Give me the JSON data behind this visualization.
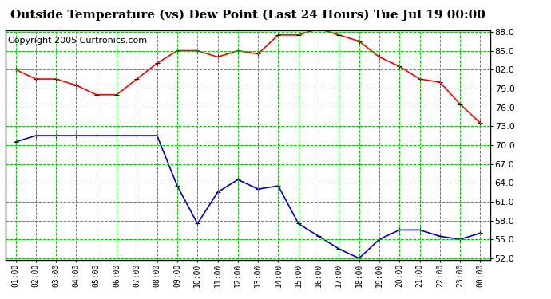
{
  "title": "Outside Temperature (vs) Dew Point (Last 24 Hours) Tue Jul 19 00:00",
  "copyright": "Copyright 2005 Curtronics.com",
  "x_labels": [
    "01:00",
    "02:00",
    "03:00",
    "04:00",
    "05:00",
    "06:00",
    "07:00",
    "08:00",
    "09:00",
    "10:00",
    "11:00",
    "12:00",
    "13:00",
    "14:00",
    "15:00",
    "16:00",
    "17:00",
    "18:00",
    "19:00",
    "20:00",
    "21:00",
    "22:00",
    "23:00",
    "00:00"
  ],
  "temp_values": [
    82.0,
    80.5,
    80.5,
    79.5,
    78.0,
    78.0,
    80.5,
    83.0,
    85.0,
    85.0,
    84.0,
    85.0,
    84.5,
    87.5,
    87.5,
    88.5,
    87.5,
    86.5,
    84.0,
    82.5,
    80.5,
    80.0,
    76.5,
    73.5
  ],
  "dew_values": [
    70.5,
    71.5,
    71.5,
    71.5,
    71.5,
    71.5,
    71.5,
    71.5,
    63.5,
    57.5,
    62.5,
    64.5,
    63.0,
    63.5,
    57.5,
    55.5,
    53.5,
    52.0,
    55.0,
    56.5,
    56.5,
    55.5,
    55.0,
    56.0
  ],
  "temp_color": "#ff0000",
  "dew_color": "#0000cc",
  "bg_color": "#ffffff",
  "grid_color": "#00cc00",
  "title_fontsize": 11,
  "copyright_fontsize": 8,
  "ylim_min": 52.0,
  "ylim_max": 88.0,
  "yticks": [
    52.0,
    55.0,
    58.0,
    61.0,
    64.0,
    67.0,
    70.0,
    73.0,
    76.0,
    79.0,
    82.0,
    85.0,
    88.0
  ]
}
